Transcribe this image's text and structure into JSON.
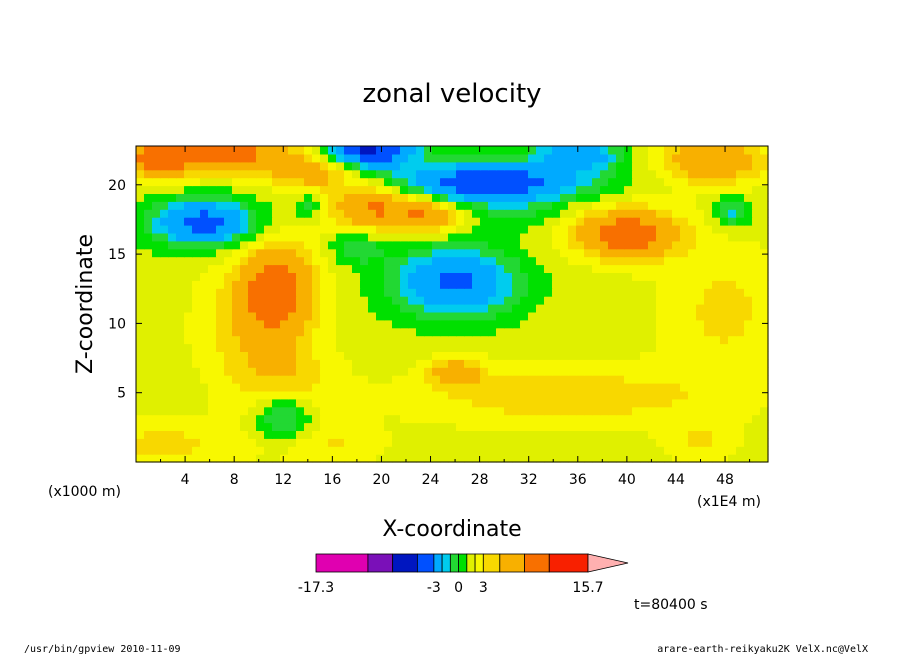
{
  "chart_data": {
    "type": "heatmap",
    "title": "zonal velocity",
    "xlabel": "X-coordinate",
    "ylabel": "Z-coordinate",
    "x_unit_label": "(x1E4 m)",
    "y_unit_label": "(x1000 m)",
    "xlim": [
      0,
      51.5
    ],
    "ylim": [
      0,
      22.8
    ],
    "xticks": [
      "4",
      "8",
      "12",
      "16",
      "20",
      "24",
      "28",
      "32",
      "36",
      "40",
      "44",
      "48"
    ],
    "xtick_values": [
      4,
      8,
      12,
      16,
      20,
      24,
      28,
      32,
      36,
      40,
      44,
      48
    ],
    "yticks": [
      "5",
      "10",
      "15",
      "20"
    ],
    "ytick_values": [
      5,
      10,
      15,
      20
    ],
    "field": {
      "background": 0.5,
      "features": [
        {
          "x": 35,
          "z": 4.8,
          "sx": 9.0,
          "sz": 1.6,
          "v": 2.2
        },
        {
          "x": 26,
          "z": 6.5,
          "sx": 1.5,
          "sz": 0.7,
          "v": 3.6
        },
        {
          "x": 12,
          "z": 6.0,
          "sx": 3.0,
          "sz": 2.0,
          "v": 2.0
        },
        {
          "x": 9,
          "z": 10.0,
          "sx": 3.0,
          "sz": 3.0,
          "v": 1.8
        },
        {
          "x": 48,
          "z": 11.0,
          "sx": 3.5,
          "sz": 3.5,
          "v": 1.8
        },
        {
          "x": 2,
          "z": 1.3,
          "sx": 5.0,
          "sz": 1.3,
          "v": 1.8
        },
        {
          "x": 16,
          "z": 1.2,
          "sx": 3.0,
          "sz": 1.2,
          "v": 1.5
        },
        {
          "x": 46,
          "z": 1.5,
          "sx": 2.0,
          "sz": 1.2,
          "v": 1.5
        },
        {
          "x": 11.5,
          "z": 12.5,
          "sx": 2.2,
          "sz": 2.4,
          "v": 5.5
        },
        {
          "x": 19.5,
          "z": 18.5,
          "sx": 2.6,
          "sz": 1.2,
          "v": 5.0
        },
        {
          "x": 24,
          "z": 17.8,
          "sx": 1.8,
          "sz": 0.9,
          "v": 3.8
        },
        {
          "x": 40,
          "z": 16.5,
          "sx": 3.0,
          "sz": 1.3,
          "v": 6.0
        },
        {
          "x": 7,
          "z": 22.3,
          "sx": 4.0,
          "sz": 1.0,
          "v": 5.5
        },
        {
          "x": 1.5,
          "z": 21.8,
          "sx": 2.0,
          "sz": 1.0,
          "v": 4.0
        },
        {
          "x": 47,
          "z": 21.8,
          "sx": 3.0,
          "sz": 1.2,
          "v": 4.5
        },
        {
          "x": 14.5,
          "z": 21.0,
          "sx": 2.5,
          "sz": 1.0,
          "v": 3.5
        },
        {
          "x": 5.5,
          "z": 17.3,
          "sx": 3.0,
          "sz": 1.2,
          "v": -6.5
        },
        {
          "x": 26,
          "z": 13.0,
          "sx": 3.5,
          "sz": 1.8,
          "v": -6.0
        },
        {
          "x": 28.5,
          "z": 20.2,
          "sx": 5.5,
          "sz": 1.0,
          "v": -7.5
        },
        {
          "x": 19,
          "z": 22.6,
          "sx": 2.5,
          "sz": 0.9,
          "v": -9.0
        },
        {
          "x": 36,
          "z": 22.2,
          "sx": 2.5,
          "sz": 0.8,
          "v": -5.0
        },
        {
          "x": 12,
          "z": 3.3,
          "sx": 1.6,
          "sz": 1.2,
          "v": -3.5
        },
        {
          "x": 18,
          "z": 15.5,
          "sx": 1.5,
          "sz": 0.8,
          "v": -2.5
        },
        {
          "x": 48.5,
          "z": 18.0,
          "sx": 1.0,
          "sz": 0.8,
          "v": -3.0
        },
        {
          "x": 14,
          "z": 18.5,
          "sx": 0.8,
          "sz": 0.6,
          "v": -2.5
        },
        {
          "x": 31,
          "z": 18.0,
          "sx": 2.5,
          "sz": 0.8,
          "v": -1.5
        }
      ]
    },
    "colorbar": {
      "min_label": "-17.3",
      "max_label": "15.7",
      "labels": [
        "-3",
        "0",
        "3"
      ],
      "label_values": [
        -3,
        0,
        3
      ],
      "levels": [
        -17.3,
        -11,
        -8,
        -5,
        -3,
        -2,
        -1,
        0,
        1,
        2,
        3,
        5,
        8,
        11,
        15.7
      ],
      "colors": [
        "#e000b0",
        "#7a10b8",
        "#0016c0",
        "#0050ff",
        "#00aaff",
        "#00ccee",
        "#22d833",
        "#00e000",
        "#e0f000",
        "#f8f800",
        "#f8d800",
        "#f8b000",
        "#f87000",
        "#f82000",
        "#f87070",
        "#ffb0b0"
      ]
    },
    "time_label": "t=80400 s"
  },
  "footer": {
    "left": "/usr/bin/gpview   2010-11-09",
    "right": "arare-earth-reikyaku2K_VelX.nc@VelX"
  }
}
